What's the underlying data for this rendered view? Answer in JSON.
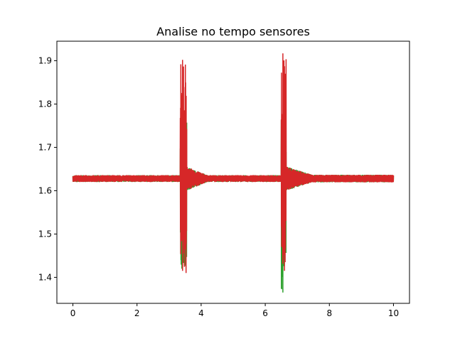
{
  "chart_data": {
    "type": "line",
    "title": "Analise no tempo sensores",
    "xlabel": "",
    "ylabel": "",
    "xlim": [
      -0.5,
      10.5
    ],
    "ylim": [
      1.34,
      1.945
    ],
    "xticks": [
      0,
      2,
      4,
      6,
      8,
      10
    ],
    "yticks": [
      1.4,
      1.5,
      1.6,
      1.7,
      1.8,
      1.9
    ],
    "xtick_labels": [
      "0",
      "2",
      "4",
      "6",
      "8",
      "10"
    ],
    "ytick_labels": [
      "1.4",
      "1.5",
      "1.6",
      "1.7",
      "1.8",
      "1.9"
    ],
    "grid": false,
    "legend": "none",
    "baseline": 1.628,
    "noise_band": [
      1.62,
      1.636
    ],
    "series": [
      {
        "color": "#2ca02c",
        "peaks": [
          {
            "x": 3.4,
            "y": 1.42
          },
          {
            "x": 6.55,
            "y": 1.365
          }
        ]
      },
      {
        "color": "#d62728",
        "peaks": [
          {
            "x": 3.42,
            "y": 1.902
          },
          {
            "x": 3.53,
            "y": 1.41
          },
          {
            "x": 6.55,
            "y": 1.917
          },
          {
            "x": 6.6,
            "y": 1.415
          }
        ]
      }
    ],
    "events": [
      {
        "start": 3.35,
        "end": 3.55
      },
      {
        "start": 6.5,
        "end": 6.65
      }
    ],
    "damping_end": [
      4.2,
      7.5
    ]
  }
}
